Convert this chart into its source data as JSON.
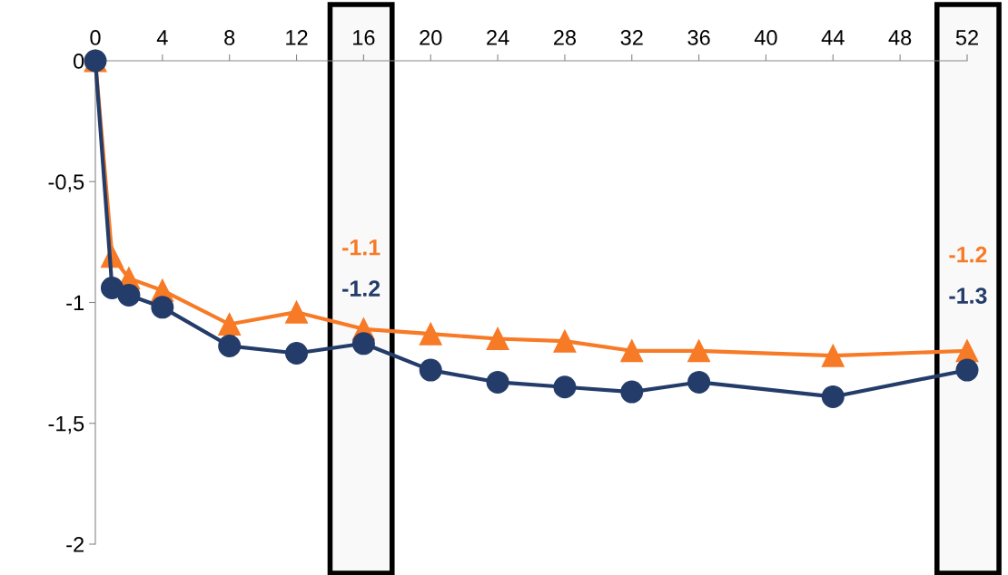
{
  "chart_data": {
    "type": "line",
    "x": [
      0,
      1,
      2,
      4,
      8,
      12,
      16,
      20,
      24,
      28,
      32,
      36,
      44,
      52
    ],
    "xlim": [
      0,
      52
    ],
    "xticks": [
      0,
      4,
      8,
      12,
      16,
      20,
      24,
      28,
      32,
      36,
      40,
      44,
      48,
      52
    ],
    "ylim": [
      -2,
      0
    ],
    "yticks": [
      {
        "value": 0,
        "label": "0"
      },
      {
        "value": -0.5,
        "label": "-0,5"
      },
      {
        "value": -1,
        "label": "-1"
      },
      {
        "value": -1.5,
        "label": "-1,5"
      },
      {
        "value": -2,
        "label": "-2"
      }
    ],
    "grid": false,
    "legend": false,
    "line_style": "solid",
    "series": [
      {
        "color": "#f77a27",
        "marker": "triangle",
        "values": [
          0,
          -0.81,
          -0.9,
          -0.95,
          -1.09,
          -1.04,
          -1.11,
          -1.13,
          -1.15,
          -1.16,
          -1.2,
          -1.2,
          -1.22,
          -1.2
        ]
      },
      {
        "color": "#243c69",
        "marker": "circle",
        "values": [
          0,
          -0.94,
          -0.97,
          -1.02,
          -1.18,
          -1.21,
          -1.17,
          -1.28,
          -1.33,
          -1.35,
          -1.37,
          -1.33,
          -1.39,
          -1.28
        ]
      }
    ],
    "annotations": [
      "-1.1",
      "-1.2",
      "-1.2",
      "-1.3"
    ],
    "bands": [
      {
        "axis": "x",
        "from": 14,
        "to": 17.7,
        "color": "#000000"
      },
      {
        "axis": "x",
        "from": 50.2,
        "to": 53.9,
        "color": "#000000"
      }
    ]
  }
}
